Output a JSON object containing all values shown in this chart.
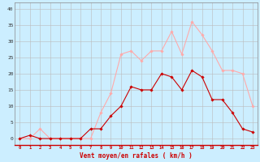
{
  "hours": [
    0,
    1,
    2,
    3,
    4,
    5,
    6,
    7,
    8,
    9,
    10,
    11,
    12,
    13,
    14,
    15,
    16,
    17,
    18,
    19,
    20,
    21,
    22,
    23
  ],
  "wind_avg": [
    0,
    1,
    0,
    0,
    0,
    0,
    0,
    3,
    3,
    7,
    10,
    16,
    15,
    15,
    20,
    19,
    15,
    21,
    19,
    12,
    12,
    8,
    3,
    2
  ],
  "wind_gust": [
    0,
    0,
    3,
    0,
    0,
    0,
    0,
    0,
    8,
    14,
    26,
    27,
    24,
    27,
    27,
    33,
    26,
    36,
    32,
    27,
    21,
    21,
    20,
    10
  ],
  "color_avg": "#cc0000",
  "color_gust": "#ffaaaa",
  "bg_color": "#cceeff",
  "grid_color": "#bbbbbb",
  "xlabel": "Vent moyen/en rafales ( km/h )",
  "xlabel_color": "#cc0000",
  "ylabel_values": [
    0,
    5,
    10,
    15,
    20,
    25,
    30,
    35,
    40
  ],
  "xlim": [
    -0.5,
    23.5
  ],
  "ylim": [
    -2,
    42
  ]
}
